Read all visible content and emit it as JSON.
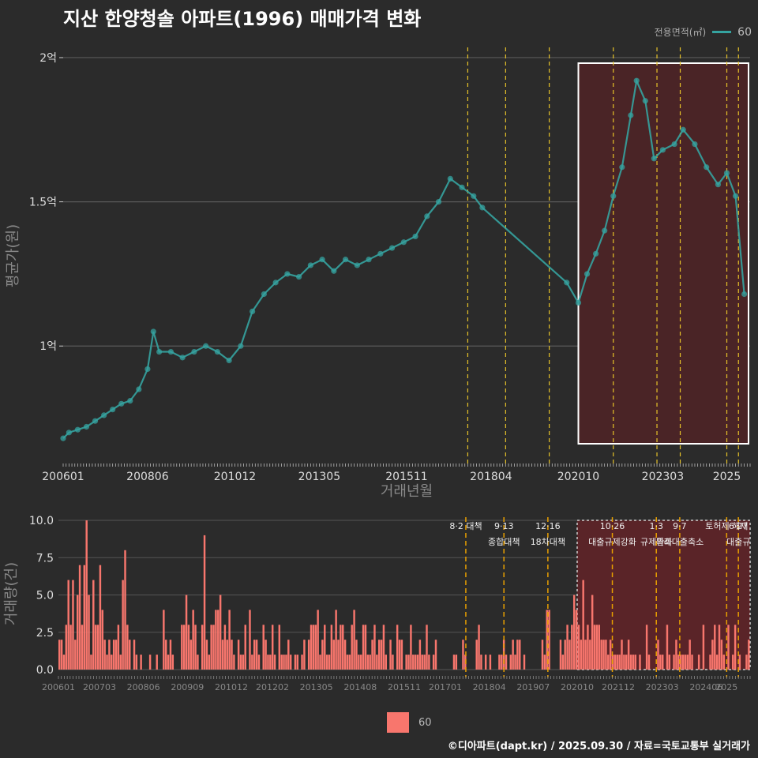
{
  "title": "지산 한양청솔 아파트(1996) 매매가격 변화",
  "legend_top": {
    "label": "전용면적(㎡)",
    "value": "60"
  },
  "legend_bottom": {
    "value": "60"
  },
  "caption": "©디아파트(dapt.kr) / 2025.09.30 / 자료=국토교통부 실거래가",
  "colors": {
    "line": "#35a3a0",
    "bar": "#f8766d",
    "policy": "#e6c229",
    "highlight_fill": "#4a2426"
  },
  "chart_data": [
    {
      "type": "line",
      "title": "지산 한양청솔 아파트(1996) 매매가격 변화",
      "xlabel": "거래년월",
      "ylabel": "평균가(원)",
      "x_ticks": [
        "200601",
        "200806",
        "201012",
        "201305",
        "201511",
        "201804",
        "202010",
        "202303",
        "2025"
      ],
      "y_ticks": [
        {
          "value": 100000000,
          "label": "1억"
        },
        {
          "value": 150000000,
          "label": "1.5억"
        },
        {
          "value": 200000000,
          "label": "2억"
        }
      ],
      "ylim": [
        59000000,
        203000000
      ],
      "xlim": [
        "2006-01",
        "2025-09"
      ],
      "highlight_range": [
        "2020-10",
        "2025-09"
      ],
      "policy_lines": [
        "2017-08",
        "2018-09",
        "2019-12",
        "2021-10",
        "2023-01",
        "2023-09",
        "2025-01",
        "2025-05"
      ],
      "series": [
        {
          "name": "60",
          "points": [
            [
              "2006-01",
              68000000
            ],
            [
              "2006-03",
              70000000
            ],
            [
              "2006-06",
              71000000
            ],
            [
              "2006-09",
              72000000
            ],
            [
              "2006-12",
              74000000
            ],
            [
              "2007-03",
              76000000
            ],
            [
              "2007-06",
              78000000
            ],
            [
              "2007-09",
              80000000
            ],
            [
              "2007-12",
              81000000
            ],
            [
              "2008-03",
              85000000
            ],
            [
              "2008-06",
              92000000
            ],
            [
              "2008-08",
              105000000
            ],
            [
              "2008-10",
              98000000
            ],
            [
              "2009-02",
              98000000
            ],
            [
              "2009-06",
              96000000
            ],
            [
              "2009-10",
              98000000
            ],
            [
              "2010-02",
              100000000
            ],
            [
              "2010-06",
              98000000
            ],
            [
              "2010-10",
              95000000
            ],
            [
              "2011-02",
              100000000
            ],
            [
              "2011-06",
              112000000
            ],
            [
              "2011-10",
              118000000
            ],
            [
              "2012-02",
              122000000
            ],
            [
              "2012-06",
              125000000
            ],
            [
              "2012-10",
              124000000
            ],
            [
              "2013-02",
              128000000
            ],
            [
              "2013-06",
              130000000
            ],
            [
              "2013-10",
              126000000
            ],
            [
              "2014-02",
              130000000
            ],
            [
              "2014-06",
              128000000
            ],
            [
              "2014-10",
              130000000
            ],
            [
              "2015-02",
              132000000
            ],
            [
              "2015-06",
              134000000
            ],
            [
              "2015-10",
              136000000
            ],
            [
              "2016-02",
              138000000
            ],
            [
              "2016-06",
              145000000
            ],
            [
              "2016-10",
              150000000
            ],
            [
              "2017-02",
              158000000
            ],
            [
              "2017-06",
              155000000
            ],
            [
              "2017-10",
              152000000
            ],
            [
              "2018-01",
              148000000
            ],
            [
              "2020-06",
              122000000
            ],
            [
              "2020-10",
              115000000
            ],
            [
              "2021-01",
              125000000
            ],
            [
              "2021-04",
              132000000
            ],
            [
              "2021-07",
              140000000
            ],
            [
              "2021-10",
              152000000
            ],
            [
              "2022-01",
              162000000
            ],
            [
              "2022-04",
              180000000
            ],
            [
              "2022-06",
              192000000
            ],
            [
              "2022-09",
              185000000
            ],
            [
              "2022-12",
              165000000
            ],
            [
              "2023-03",
              168000000
            ],
            [
              "2023-07",
              170000000
            ],
            [
              "2023-10",
              175000000
            ],
            [
              "2024-02",
              170000000
            ],
            [
              "2024-06",
              162000000
            ],
            [
              "2024-10",
              156000000
            ],
            [
              "2025-01",
              160000000
            ],
            [
              "2025-04",
              152000000
            ],
            [
              "2025-07",
              118000000
            ]
          ]
        }
      ]
    },
    {
      "type": "bar",
      "xlabel": "",
      "ylabel": "거래량(건)",
      "x_ticks": [
        "200601",
        "200703",
        "200806",
        "200909",
        "201012",
        "201202",
        "201305",
        "201408",
        "201511",
        "201701",
        "201804",
        "201907",
        "202010",
        "202112",
        "202303",
        "202406",
        "2025"
      ],
      "y_ticks": [
        "0.0",
        "2.5",
        "5.0",
        "7.5",
        "10.0"
      ],
      "ylim": [
        0,
        10
      ],
      "highlight_range": [
        "2020-10",
        "2025-09"
      ],
      "policy_lines": [
        "2017-08",
        "2018-09",
        "2019-12",
        "2021-10",
        "2023-01",
        "2023-09",
        "2025-01",
        "2025-05"
      ],
      "annotations": [
        {
          "date": "2017-08",
          "text": "8·2 대책"
        },
        {
          "date": "2018-09",
          "text": "9·13"
        },
        {
          "date": "2018-09",
          "text": "종합대책"
        },
        {
          "date": "2019-12",
          "text": "12·16"
        },
        {
          "date": "2019-12",
          "text": "18차대책"
        },
        {
          "date": "2021-10",
          "text": "10·26"
        },
        {
          "date": "2021-10",
          "text": "대출규제강화"
        },
        {
          "date": "2023-01",
          "text": "1·3"
        },
        {
          "date": "2023-01",
          "text": "규제완화"
        },
        {
          "date": "2023-09",
          "text": "9·7"
        },
        {
          "date": "2023-09",
          "text": "특례대출축소"
        },
        {
          "date": "2025-01",
          "text": "토허제 해제"
        },
        {
          "date": "2025-05",
          "text": "6·27"
        },
        {
          "date": "2025-05",
          "text": "대출규"
        }
      ],
      "series": [
        {
          "name": "60",
          "values": [
            2,
            2,
            1,
            3,
            6,
            3,
            6,
            2,
            5,
            7,
            3,
            7,
            10,
            5,
            1,
            6,
            3,
            3,
            7,
            4,
            2,
            1,
            2,
            1,
            2,
            2,
            3,
            1,
            6,
            8,
            3,
            2,
            0,
            2,
            1,
            0,
            1,
            0,
            0,
            0,
            1,
            0,
            0,
            1,
            0,
            0,
            4,
            2,
            1,
            2,
            1,
            0,
            0,
            0,
            3,
            3,
            5,
            3,
            2,
            4,
            3,
            1,
            0,
            3,
            9,
            2,
            1,
            3,
            3,
            4,
            4,
            5,
            2,
            3,
            2,
            4,
            2,
            1,
            0,
            2,
            1,
            1,
            3,
            0,
            4,
            1,
            2,
            2,
            1,
            0,
            3,
            2,
            1,
            1,
            3,
            1,
            0,
            3,
            1,
            1,
            1,
            2,
            1,
            0,
            1,
            1,
            0,
            1,
            2,
            0,
            2,
            3,
            3,
            3,
            4,
            1,
            2,
            3,
            1,
            1,
            3,
            2,
            4,
            2,
            3,
            3,
            2,
            1,
            1,
            3,
            4,
            2,
            1,
            1,
            3,
            3,
            1,
            1,
            2,
            3,
            1,
            2,
            2,
            3,
            1,
            0,
            2,
            1,
            0,
            3,
            2,
            2,
            0,
            1,
            1,
            3,
            1,
            1,
            1,
            2,
            1,
            1,
            3,
            1,
            0,
            1,
            2,
            0,
            0,
            0,
            0,
            0,
            0,
            0,
            1,
            1,
            0,
            0,
            2,
            1,
            0,
            0,
            0,
            0,
            2,
            3,
            1,
            0,
            1,
            0,
            1,
            0,
            0,
            0,
            1,
            1,
            2,
            1,
            0,
            1,
            2,
            1,
            2,
            2,
            0,
            1,
            0,
            0,
            0,
            0,
            0,
            0,
            0,
            2,
            1,
            4,
            4,
            0,
            0,
            0,
            0,
            2,
            1,
            2,
            3,
            2,
            3,
            5,
            4,
            3,
            2,
            6,
            2,
            3,
            2,
            5,
            3,
            3,
            3,
            2,
            2,
            2,
            1,
            2,
            1,
            1,
            1,
            1,
            2,
            1,
            1,
            2,
            1,
            1,
            1,
            0,
            1,
            0,
            0,
            3,
            1,
            0,
            0,
            0,
            2,
            1,
            1,
            0,
            3,
            1,
            0,
            1,
            2,
            1,
            1,
            1,
            1,
            1,
            2,
            1,
            0,
            0,
            1,
            0,
            3,
            0,
            0,
            1,
            2,
            3,
            1,
            3,
            2,
            1,
            0,
            3,
            0,
            1,
            3,
            0,
            1,
            0,
            0,
            1,
            2
          ]
        }
      ]
    }
  ]
}
